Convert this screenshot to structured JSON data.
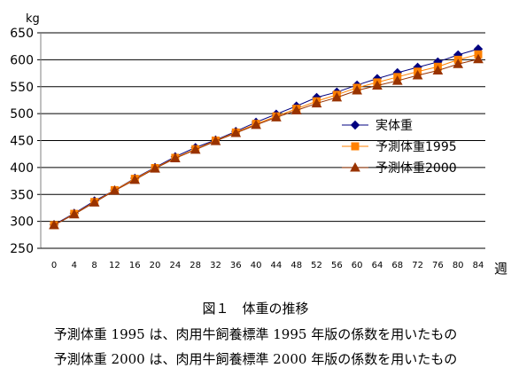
{
  "chart_data": {
    "type": "line",
    "ylabel": "kg",
    "xlabel": "週",
    "ylim": [
      250,
      650
    ],
    "yticks": [
      250,
      300,
      350,
      400,
      450,
      500,
      550,
      600,
      650
    ],
    "x": [
      0,
      4,
      8,
      12,
      16,
      20,
      24,
      28,
      32,
      36,
      40,
      44,
      48,
      52,
      56,
      60,
      64,
      68,
      72,
      76,
      80,
      84
    ],
    "xlim": [
      0,
      84
    ],
    "grid": "horizontal",
    "legend_position": "right",
    "series": [
      {
        "name": "実体重",
        "marker": "diamond",
        "color": "#000080",
        "values": [
          294,
          315,
          338,
          358,
          380,
          400,
          420,
          437,
          451,
          467,
          484,
          499,
          514,
          530,
          540,
          553,
          565,
          576,
          586,
          596,
          609,
          620
        ]
      },
      {
        "name": "予測体重1995",
        "marker": "square",
        "color": "#FF8000",
        "values": [
          293,
          314,
          336,
          358,
          379,
          399,
          418,
          434,
          450,
          465,
          481,
          495,
          509,
          523,
          535,
          548,
          558,
          568,
          578,
          587,
          600,
          610
        ]
      },
      {
        "name": "予測体重2000",
        "marker": "triangle",
        "color": "#993300",
        "values": [
          293,
          313,
          335,
          357,
          377,
          398,
          417,
          433,
          449,
          464,
          479,
          493,
          506,
          519,
          530,
          543,
          552,
          561,
          571,
          580,
          592,
          601
        ]
      }
    ]
  },
  "caption": {
    "figure_title": "図１　体重の推移",
    "notes": [
      "予測体重 1995 は、肉用牛飼養標準 1995 年版の係数を用いたもの",
      "予測体重 2000 は、肉用牛飼養標準 2000 年版の係数を用いたもの"
    ]
  }
}
